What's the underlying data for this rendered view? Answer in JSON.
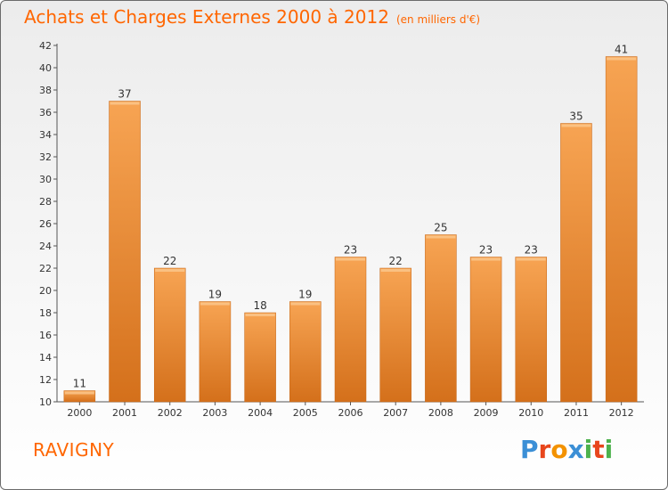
{
  "header": {
    "title": "Achats et Charges Externes 2000 à 2012",
    "subtitle": "(en milliers d'€)"
  },
  "footer": {
    "place": "RAVIGNY",
    "logo": [
      "P",
      "r",
      "o",
      "x",
      "i",
      "t",
      "i"
    ]
  },
  "colors": {
    "accent": "#ff6600",
    "bar_light": "#f7a453",
    "bar_dark": "#d4701b",
    "logo_letters": [
      "#3b8fd6",
      "#e8461c",
      "#f39200",
      "#3b8fd6",
      "#4db24d",
      "#e8461c",
      "#4db24d"
    ]
  },
  "chart_data": {
    "type": "bar",
    "categories": [
      "2000",
      "2001",
      "2002",
      "2003",
      "2004",
      "2005",
      "2006",
      "2007",
      "2008",
      "2009",
      "2010",
      "2011",
      "2012"
    ],
    "values": [
      11,
      37,
      22,
      19,
      18,
      19,
      23,
      22,
      25,
      23,
      23,
      35,
      41
    ],
    "ylim": [
      10,
      42
    ],
    "yticks": [
      10,
      12,
      14,
      16,
      18,
      20,
      22,
      24,
      26,
      28,
      30,
      32,
      34,
      36,
      38,
      40,
      42
    ],
    "grid": false,
    "data_labels": true
  }
}
